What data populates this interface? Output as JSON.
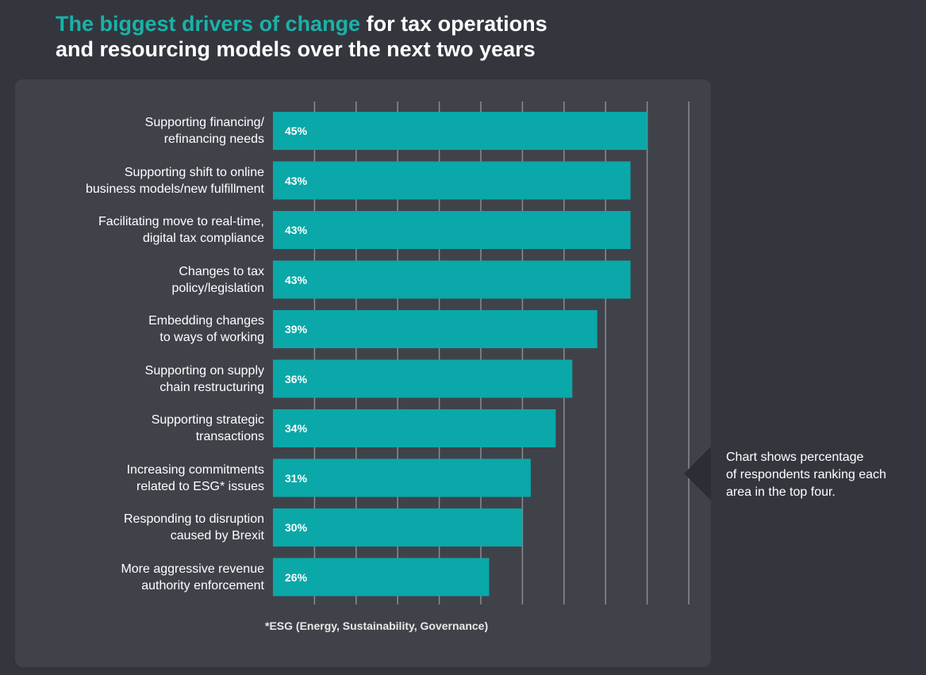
{
  "title": {
    "highlight": "The biggest drivers of change",
    "rest_line1": " for tax operations",
    "line2": "and resourcing models over the next two years"
  },
  "colors": {
    "accent": "#19b2a8",
    "bar": "#0aa8a8",
    "background": "#34363e",
    "panel": "#40424a",
    "gridline": "#8a8c92",
    "text": "#ffffff"
  },
  "chart_data": {
    "type": "bar",
    "orientation": "horizontal",
    "categories": [
      [
        "Supporting financing/",
        "refinancing needs"
      ],
      [
        "Supporting shift to online",
        "business models/new fulfillment"
      ],
      [
        "Facilitating move to real-time,",
        "digital tax compliance"
      ],
      [
        "Changes to tax",
        "policy/legislation"
      ],
      [
        "Embedding changes",
        "to ways of working"
      ],
      [
        "Supporting on supply",
        "chain restructuring"
      ],
      [
        "Supporting strategic",
        "transactions"
      ],
      [
        "Increasing commitments",
        "related to ESG* issues"
      ],
      [
        "Responding to disruption",
        "caused by Brexit"
      ],
      [
        "More aggressive revenue",
        "authority enforcement"
      ]
    ],
    "values": [
      45,
      43,
      43,
      43,
      39,
      36,
      34,
      31,
      30,
      26
    ],
    "value_labels": [
      "45%",
      "43%",
      "43%",
      "43%",
      "39%",
      "36%",
      "34%",
      "31%",
      "30%",
      "26%"
    ],
    "xlim": [
      0,
      50
    ],
    "grid_step": 5,
    "grid": true,
    "xlabel": "",
    "ylabel": ""
  },
  "footnote": "*ESG (Energy, Sustainability, Governance)",
  "note": {
    "lines": [
      "Chart shows percentage",
      "of respondents ranking each",
      "area in the top four."
    ]
  }
}
